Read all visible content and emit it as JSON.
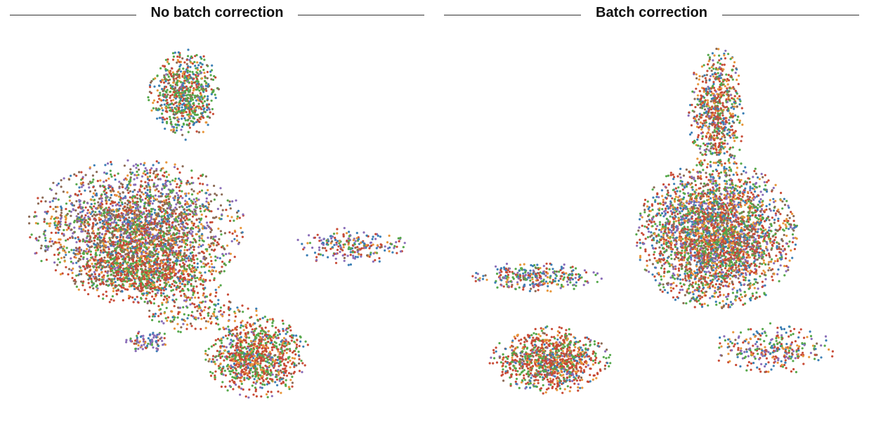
{
  "chart_data": [
    {
      "type": "scatter",
      "title": "No batch correction",
      "xlabel": "",
      "ylabel": "",
      "grid": false,
      "legend": "none",
      "series_colors": [
        "#3b7fb5",
        "#e8963a",
        "#55a84a",
        "#c84a35",
        "#8a6db8",
        "#8b6a55"
      ],
      "clusters": [
        {
          "cx": 0.42,
          "cy": 0.15,
          "rx": 0.09,
          "ry": 0.12,
          "n": 700,
          "mix": [
            0.18,
            0.12,
            0.32,
            0.25,
            0.03,
            0.1
          ]
        },
        {
          "cx": 0.3,
          "cy": 0.5,
          "rx": 0.27,
          "ry": 0.18,
          "n": 2600,
          "mix": [
            0.1,
            0.12,
            0.18,
            0.2,
            0.18,
            0.22
          ]
        },
        {
          "cx": 0.33,
          "cy": 0.62,
          "rx": 0.2,
          "ry": 0.09,
          "n": 900,
          "mix": [
            0.06,
            0.12,
            0.26,
            0.48,
            0.02,
            0.06
          ]
        },
        {
          "cx": 0.6,
          "cy": 0.84,
          "rx": 0.13,
          "ry": 0.11,
          "n": 950,
          "mix": [
            0.06,
            0.1,
            0.3,
            0.42,
            0.08,
            0.04
          ]
        },
        {
          "cx": 0.83,
          "cy": 0.55,
          "rx": 0.14,
          "ry": 0.05,
          "n": 240,
          "mix": [
            0.2,
            0.12,
            0.12,
            0.22,
            0.3,
            0.04
          ]
        },
        {
          "cx": 0.46,
          "cy": 0.72,
          "rx": 0.16,
          "ry": 0.06,
          "n": 180,
          "mix": [
            0.14,
            0.2,
            0.24,
            0.24,
            0.12,
            0.06
          ]
        },
        {
          "cx": 0.33,
          "cy": 0.8,
          "rx": 0.06,
          "ry": 0.03,
          "n": 90,
          "mix": [
            0.18,
            0.1,
            0.12,
            0.1,
            0.45,
            0.05
          ]
        }
      ]
    },
    {
      "type": "scatter",
      "title": "Batch correction",
      "xlabel": "",
      "ylabel": "",
      "grid": false,
      "legend": "none",
      "series_colors": [
        "#3b7fb5",
        "#e8963a",
        "#55a84a",
        "#c84a35",
        "#8a6db8",
        "#8b6a55"
      ],
      "clusters": [
        {
          "cx": 0.66,
          "cy": 0.2,
          "rx": 0.07,
          "ry": 0.18,
          "n": 700,
          "mix": [
            0.14,
            0.16,
            0.24,
            0.3,
            0.06,
            0.1
          ]
        },
        {
          "cx": 0.66,
          "cy": 0.52,
          "rx": 0.2,
          "ry": 0.2,
          "n": 3200,
          "mix": [
            0.14,
            0.14,
            0.22,
            0.26,
            0.12,
            0.12
          ]
        },
        {
          "cx": 0.25,
          "cy": 0.85,
          "rx": 0.15,
          "ry": 0.09,
          "n": 1000,
          "mix": [
            0.1,
            0.14,
            0.24,
            0.4,
            0.06,
            0.06
          ]
        },
        {
          "cx": 0.22,
          "cy": 0.63,
          "rx": 0.16,
          "ry": 0.04,
          "n": 300,
          "mix": [
            0.2,
            0.12,
            0.22,
            0.24,
            0.18,
            0.04
          ]
        },
        {
          "cx": 0.8,
          "cy": 0.82,
          "rx": 0.15,
          "ry": 0.07,
          "n": 300,
          "mix": [
            0.18,
            0.14,
            0.2,
            0.26,
            0.16,
            0.06
          ]
        }
      ]
    }
  ]
}
